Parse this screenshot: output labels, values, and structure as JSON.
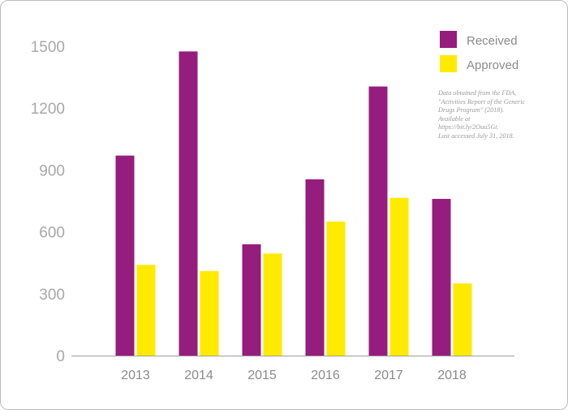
{
  "chart_data": {
    "type": "bar",
    "categories": [
      "2013",
      "2014",
      "2015",
      "2016",
      "2017",
      "2018"
    ],
    "series": [
      {
        "name": "Received",
        "values": [
          970,
          1475,
          540,
          855,
          1305,
          760
        ],
        "color": "#951d7d"
      },
      {
        "name": "Approved",
        "values": [
          440,
          410,
          495,
          650,
          765,
          350
        ],
        "color": "#ffea00"
      }
    ],
    "yticks": [
      0,
      300,
      600,
      900,
      1200,
      1500
    ],
    "ylim": [
      0,
      1500
    ],
    "title": "",
    "xlabel": "",
    "ylabel": "",
    "legend": "top-right",
    "grid": false,
    "annotation": [
      "Data obtained from the FDA,",
      "\"Activities Report of the Generic",
      "Drugs Program\" (2018).",
      "Available at",
      "https://bit.ly/2Ouu5Gt.",
      "Last accessed July 31, 2018."
    ]
  }
}
